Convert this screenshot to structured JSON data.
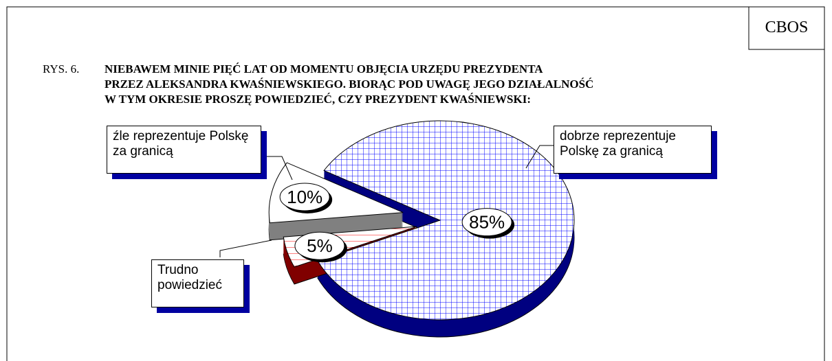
{
  "chart_data": {
    "type": "pie",
    "source": "CBOS",
    "figure_label": "RYS. 6.",
    "title": [
      "NIEBAWEM MINIE PIĘĆ LAT OD MOMENTU OBJĘCIA URZĘDU PREZYDENTA",
      "PRZEZ ALEKSANDRA KWAŚNIEWSKIEGO. BIORĄC POD UWAGĘ JEGO DZIAŁALNOŚĆ",
      "W TYM OKRESIE PROSZĘ POWIEDZIEĆ, CZY PREZYDENT KWAŚNIEWSKI:"
    ],
    "categories": [
      "dobrze reprezentuje Polskę za granicą",
      "źle reprezentuje Polskę za granicą",
      "Trudno powiedzieć"
    ],
    "values": [
      85,
      5,
      10
    ],
    "value_labels": [
      "85%",
      "5%",
      "10%"
    ],
    "colors": [
      "#0000ff",
      "#ff0000",
      "#ffffff"
    ]
  }
}
